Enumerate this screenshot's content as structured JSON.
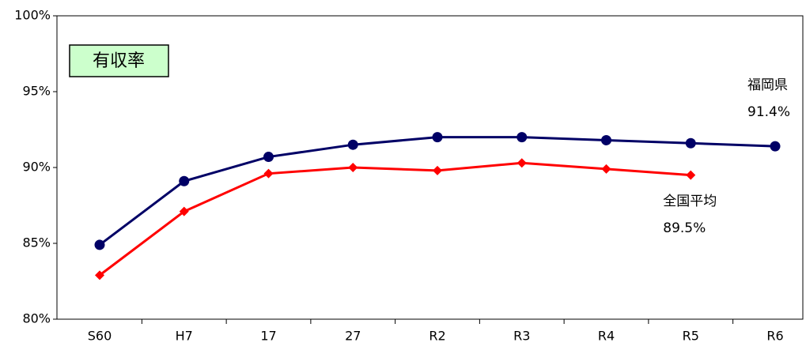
{
  "chart_data": {
    "type": "line",
    "title": "有収率",
    "categories": [
      "S60",
      "H7",
      "17",
      "27",
      "R2",
      "R3",
      "R4",
      "R5",
      "R6"
    ],
    "series": [
      {
        "name": "福岡県",
        "color": "#000066",
        "marker": "circle",
        "values": [
          84.9,
          89.1,
          90.7,
          91.5,
          92.0,
          92.0,
          91.8,
          91.6,
          91.4
        ],
        "value_labels": [
          null,
          null,
          null,
          null,
          null,
          null,
          null,
          null,
          "91.4%"
        ]
      },
      {
        "name": "全国平均",
        "color": "#ff0000",
        "marker": "diamond",
        "values": [
          82.9,
          87.1,
          89.6,
          90.0,
          89.8,
          90.3,
          89.9,
          89.5,
          null
        ],
        "value_labels": [
          null,
          null,
          null,
          null,
          null,
          null,
          null,
          "89.5%",
          null
        ]
      }
    ],
    "ylim": [
      80,
      100
    ],
    "yticks": [
      {
        "value": 80,
        "label": "80%"
      },
      {
        "value": 85,
        "label": "85%"
      },
      {
        "value": 90,
        "label": "90%"
      },
      {
        "value": 95,
        "label": "95%"
      },
      {
        "value": 100,
        "label": "100%"
      }
    ],
    "grid": false
  }
}
